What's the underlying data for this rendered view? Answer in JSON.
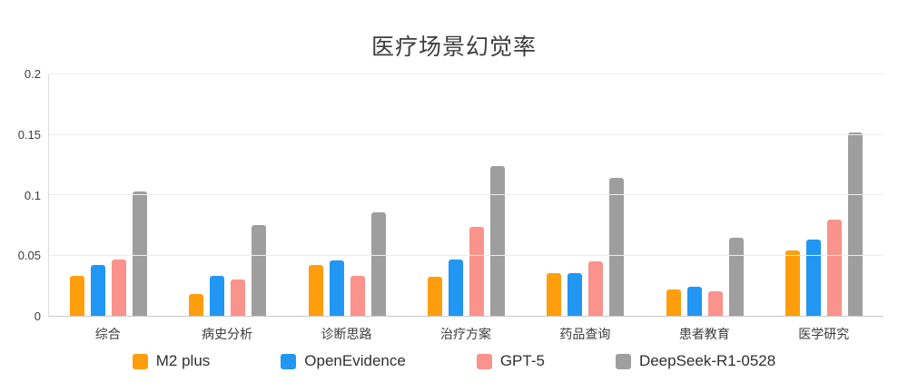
{
  "chart_data": {
    "type": "bar",
    "title": "医疗场景幻觉率",
    "categories": [
      "综合",
      "病史分析",
      "诊断思路",
      "治疗方案",
      "药品查询",
      "患者教育",
      "医学研究"
    ],
    "series": [
      {
        "name": "M2 plus",
        "color": "#FF9E0C",
        "values": [
          0.033,
          0.018,
          0.042,
          0.032,
          0.035,
          0.022,
          0.054
        ]
      },
      {
        "name": "OpenEvidence",
        "color": "#2196F3",
        "values": [
          0.042,
          0.033,
          0.046,
          0.047,
          0.035,
          0.024,
          0.063
        ]
      },
      {
        "name": "GPT-5",
        "color": "#F9938B",
        "values": [
          0.047,
          0.03,
          0.033,
          0.074,
          0.045,
          0.02,
          0.08
        ]
      },
      {
        "name": "DeepSeek-R1-0528",
        "color": "#9E9E9E",
        "values": [
          0.103,
          0.075,
          0.086,
          0.124,
          0.114,
          0.065,
          0.152
        ]
      }
    ],
    "ylim": [
      0,
      0.2
    ],
    "yticks": [
      0,
      0.05,
      0.1,
      0.15,
      0.2
    ],
    "ytick_labels": [
      "0",
      "0.05",
      "0.1",
      "0.15",
      "0.2"
    ],
    "xlabel": "",
    "ylabel": "",
    "grid": true,
    "legend_position": "bottom"
  },
  "colors": {
    "background": "#ffffff",
    "gridline": "#ececec",
    "axis_line": "#c9c9c9",
    "text": "#3b3b3b"
  }
}
